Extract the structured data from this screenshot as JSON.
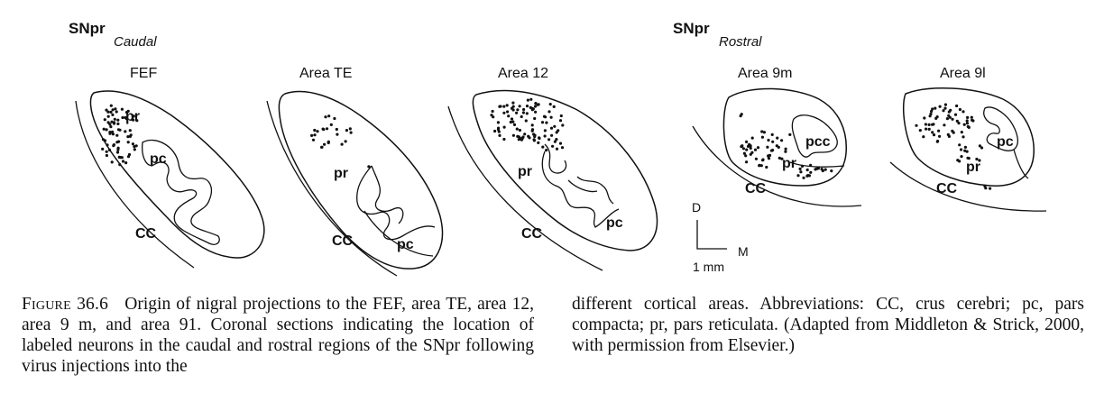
{
  "caudal_group": {
    "title": "SNpr",
    "subtitle": "Caudal"
  },
  "rostral_group": {
    "title": "SNpr",
    "subtitle": "Rostral"
  },
  "panels": [
    {
      "title": "FEF",
      "pr": "pr",
      "pc": "pc",
      "cc": "CC"
    },
    {
      "title": "Area TE",
      "pr": "pr",
      "pc": "pc",
      "cc": "CC"
    },
    {
      "title": "Area 12",
      "pr": "pr",
      "pc": "pc",
      "cc": "CC"
    },
    {
      "title": "Area 9m",
      "pr": "pr",
      "pc": "pcc",
      "cc": "CC"
    },
    {
      "title": "Area 9l",
      "pr": "pr",
      "pc": "pc",
      "cc": "CC"
    }
  ],
  "scale_bar": {
    "dorsal": "D",
    "medial": "M",
    "length": "1 mm"
  },
  "caption": {
    "figure_label": "Figure 36.6",
    "left_text": "Origin of nigral projections to the FEF, area TE, area 12, area 9 m, and area 91. Coronal sections indicating the location of labeled neurons in the caudal and rostral regions of the SNpr following virus injections into the",
    "right_text": "different cortical areas. Abbreviations: CC, crus cerebri; pc, pars compacta; pr, pars reticulata. (Adapted from Middleton & Strick, 2000, with permission from Elsevier.)"
  }
}
